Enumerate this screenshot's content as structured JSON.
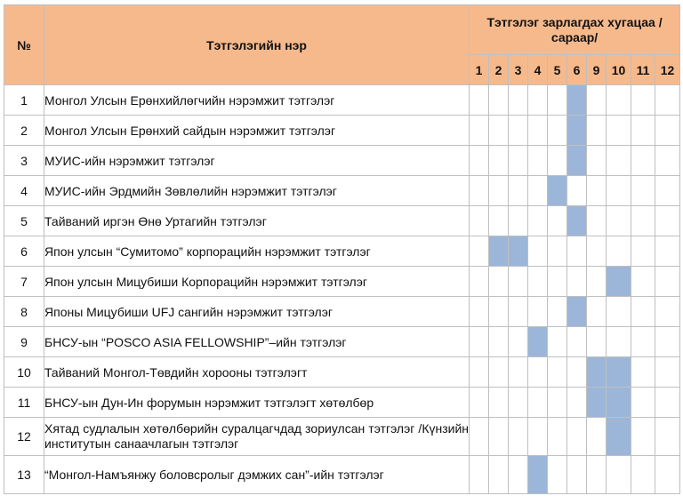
{
  "header": {
    "num": "№",
    "name": "Тэтгэлэгийн нэр",
    "schedule": "Тэтгэлэг зарлагдах хугацаа /сараар/",
    "months": [
      "1",
      "2",
      "3",
      "4",
      "5",
      "6",
      "9",
      "10",
      "11",
      "12"
    ]
  },
  "rows": [
    {
      "num": "1",
      "name": "Монгол Улсын Ерөнхийлөгчийн нэрэмжит тэтгэлэг",
      "active": [
        "6"
      ]
    },
    {
      "num": "2",
      "name": "Монгол Улсын Ерөнхий сайдын нэрэмжит тэтгэлэг",
      "active": [
        "6"
      ]
    },
    {
      "num": "3",
      "name": "МУИС-ийн нэрэмжит  тэтгэлэг",
      "active": [
        "6"
      ]
    },
    {
      "num": "4",
      "name": "МУИС-ийн Эрдмийн Зөвлөлийн нэрэмжит тэтгэлэг",
      "active": [
        "5"
      ]
    },
    {
      "num": "5",
      "name": "Тайваний иргэн Өнө Уртагийн тэтгэлэг",
      "active": [
        "6"
      ]
    },
    {
      "num": "6",
      "name": "Япон улсын “Сумитомо” корпорацийн нэрэмжит тэтгэлэг",
      "active": [
        "2",
        "3"
      ]
    },
    {
      "num": "7",
      "name": "Япон улсын Мицубиши Корпорацийн нэрэмжит тэтгэлэг",
      "active": [
        "10"
      ]
    },
    {
      "num": "8",
      "name": "Японы Мицубиши UFJ сангийн нэрэмжит тэтгэлэг",
      "active": [
        "6"
      ]
    },
    {
      "num": "9",
      "name": "БНСУ-ын  “POSCO ASIA FELLOWSHIP”–ийн тэтгэлэг",
      "active": [
        "4"
      ]
    },
    {
      "num": "10",
      "name": "Тайваний Монгол-Төвдийн хорооны тэтгэлэгт",
      "active": [
        "9",
        "10"
      ]
    },
    {
      "num": "11",
      "name": "БНСУ-ын Дун-Ин форумын нэрэмжит тэтгэлэгт хөтөлбөр",
      "active": [
        "9",
        "10"
      ]
    },
    {
      "num": "12",
      "name": "Хятад судлалын хөтөлбөрийн суралцагчдад зориулсан тэтгэлэг /Күнзийн институтын санаачлагын тэтгэлэг",
      "active": [
        "10"
      ]
    },
    {
      "num": "13",
      "name": "“Монгол-Намъянжу   боловсролыг   дэмжих   сан”-ийн тэтгэлэг",
      "active": [
        "4"
      ]
    }
  ]
}
